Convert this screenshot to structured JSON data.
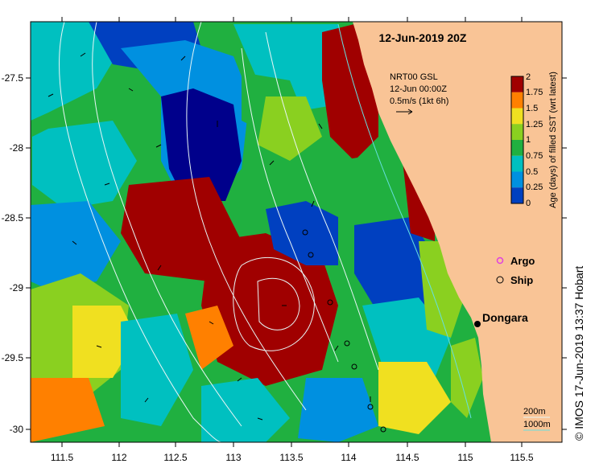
{
  "title": "12-Jun-2019 20Z",
  "credit": "© IMOS 17-Jun-2019 13:37 Hobart",
  "current_legend": {
    "line1": "NRT00 GSL",
    "line2": "12-Jun 00:00Z",
    "line3": "0.5m/s (1kt 6h)"
  },
  "colorbar": {
    "label": "Age (days) of filled SST (wrt latest)",
    "ticks": [
      "0",
      "0.25",
      "0.5",
      "0.75",
      "1",
      "1.25",
      "1.5",
      "1.75",
      "2"
    ],
    "colors": [
      "#00008b",
      "#0040c0",
      "#0090e0",
      "#00c0c0",
      "#20b040",
      "#8ad020",
      "#f0e020",
      "#ff8000",
      "#a00000"
    ]
  },
  "symbols": {
    "argo_label": "Argo",
    "ship_label": "Ship",
    "argo_color": "#e040e0"
  },
  "place": {
    "name": "Dongara"
  },
  "contour_legend": {
    "label_200": "200m",
    "label_1000": "1000m"
  },
  "axes": {
    "x_ticks": [
      "111.5",
      "112",
      "112.5",
      "113",
      "113.5",
      "114",
      "114.5",
      "115",
      "115.5"
    ],
    "y_ticks": [
      "-27.5",
      "-28",
      "-28.5",
      "-29",
      "-29.5",
      "-30"
    ]
  },
  "colors": {
    "land": "#f9c496",
    "contour": "#e8f6f6",
    "contour_1000": "#66e0e0"
  }
}
